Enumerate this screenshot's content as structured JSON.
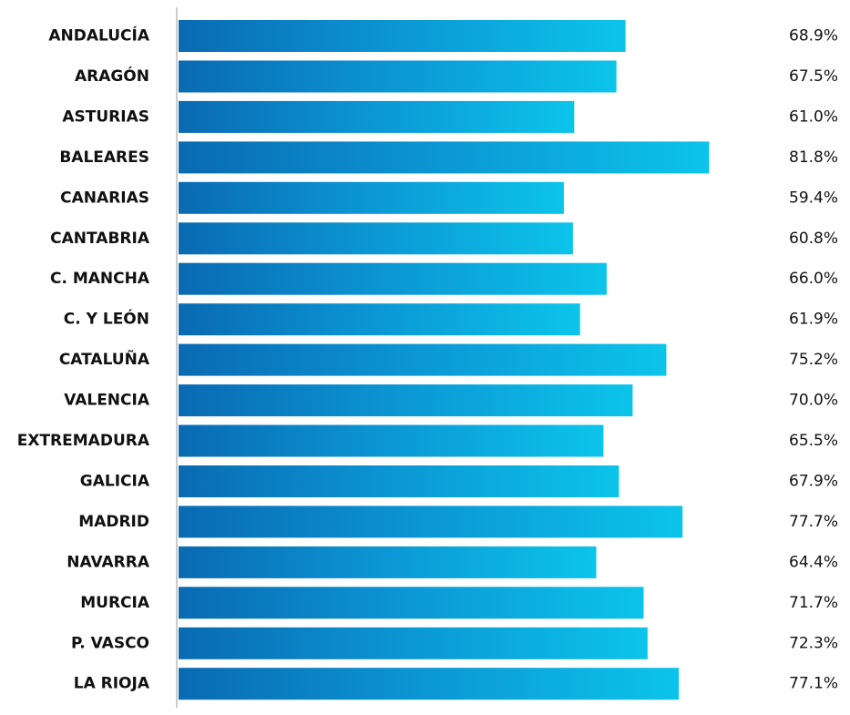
{
  "chart_data": {
    "type": "bar",
    "orientation": "horizontal",
    "categories": [
      "ANDALUCÍA",
      "ARAGÓN",
      "ASTURIAS",
      "BALEARES",
      "CANARIAS",
      "CANTABRIA",
      "C. MANCHA",
      "C. Y LEÓN",
      "CATALUÑA",
      "VALENCIA",
      "EXTREMADURA",
      "GALICIA",
      "MADRID",
      "NAVARRA",
      "MURCIA",
      "P. VASCO",
      "LA RIOJA"
    ],
    "values": [
      68.9,
      67.5,
      61.0,
      81.8,
      59.4,
      60.8,
      66.0,
      61.9,
      75.2,
      70.0,
      65.5,
      67.9,
      77.7,
      64.4,
      71.7,
      72.3,
      77.1
    ],
    "value_labels": [
      "68.9%",
      "67.5%",
      "61.0%",
      "81.8%",
      "59.4%",
      "60.8%",
      "66.0%",
      "61.9%",
      "75.2%",
      "70.0%",
      "65.5%",
      "67.9%",
      "77.7%",
      "64.4%",
      "71.7%",
      "72.3%",
      "77.1%"
    ],
    "title": "",
    "xlabel": "",
    "ylabel": "",
    "xlim": [
      0,
      100
    ],
    "grid": false,
    "legend": "none",
    "colors": {
      "bar_start": "#0a6ab2",
      "bar_mid": "#0b93d2",
      "bar_end": "#0cc4ea",
      "axis": "#999999",
      "text": "#111111"
    }
  }
}
